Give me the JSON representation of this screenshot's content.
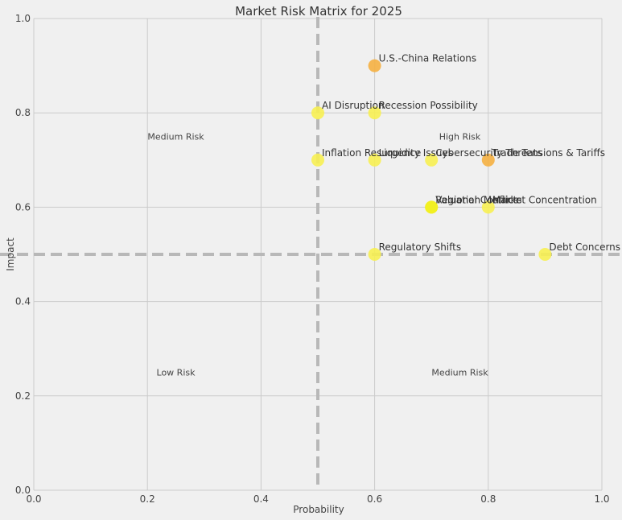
{
  "chart_data": {
    "type": "scatter",
    "title": "Market Risk Matrix for 2025",
    "xlabel": "Probability",
    "ylabel": "Impact",
    "xlim": [
      0,
      1
    ],
    "ylim": [
      0,
      1
    ],
    "xticks": [
      "0.0",
      "0.2",
      "0.4",
      "0.6",
      "0.8",
      "1.0"
    ],
    "yticks": [
      "0.0",
      "0.2",
      "0.4",
      "0.6",
      "0.8",
      "1.0"
    ],
    "grid": true,
    "threshold_lines": {
      "x": 0.5,
      "y": 0.5
    },
    "quadrant_labels": [
      {
        "text": "Medium Risk",
        "x": 0.25,
        "y": 0.75
      },
      {
        "text": "High Risk",
        "x": 0.75,
        "y": 0.75
      },
      {
        "text": "Low Risk",
        "x": 0.25,
        "y": 0.25
      },
      {
        "text": "Medium Risk",
        "x": 0.75,
        "y": 0.25
      }
    ],
    "points": [
      {
        "label": "U.S.-China Relations",
        "x": 0.6,
        "y": 0.9,
        "color": "#f5b041"
      },
      {
        "label": "AI Disruption",
        "x": 0.5,
        "y": 0.8,
        "color": "#f7ef52"
      },
      {
        "label": "Recession Possibility",
        "x": 0.6,
        "y": 0.8,
        "color": "#f7ef52"
      },
      {
        "label": "Inflation Resurgence",
        "x": 0.5,
        "y": 0.7,
        "color": "#f7ef52"
      },
      {
        "label": "Liquidity Issues",
        "x": 0.6,
        "y": 0.7,
        "color": "#f7ef52"
      },
      {
        "label": "Cybersecurity Threats",
        "x": 0.7,
        "y": 0.7,
        "color": "#f7ef52"
      },
      {
        "label": "Trade Tensions & Tariffs",
        "x": 0.8,
        "y": 0.7,
        "color": "#f5b041"
      },
      {
        "label": "Regional Conflicts",
        "x": 0.7,
        "y": 0.6,
        "color": "#f2f020"
      },
      {
        "label": "Valuation Metrics",
        "x": 0.7,
        "y": 0.6,
        "color": "#f2f020"
      },
      {
        "label": "Market Concentration",
        "x": 0.8,
        "y": 0.6,
        "color": "#f7ef52"
      },
      {
        "label": "Regulatory Shifts",
        "x": 0.6,
        "y": 0.5,
        "color": "#f7ef52"
      },
      {
        "label": "Debt Concerns",
        "x": 0.9,
        "y": 0.5,
        "color": "#f7ef52"
      }
    ]
  }
}
